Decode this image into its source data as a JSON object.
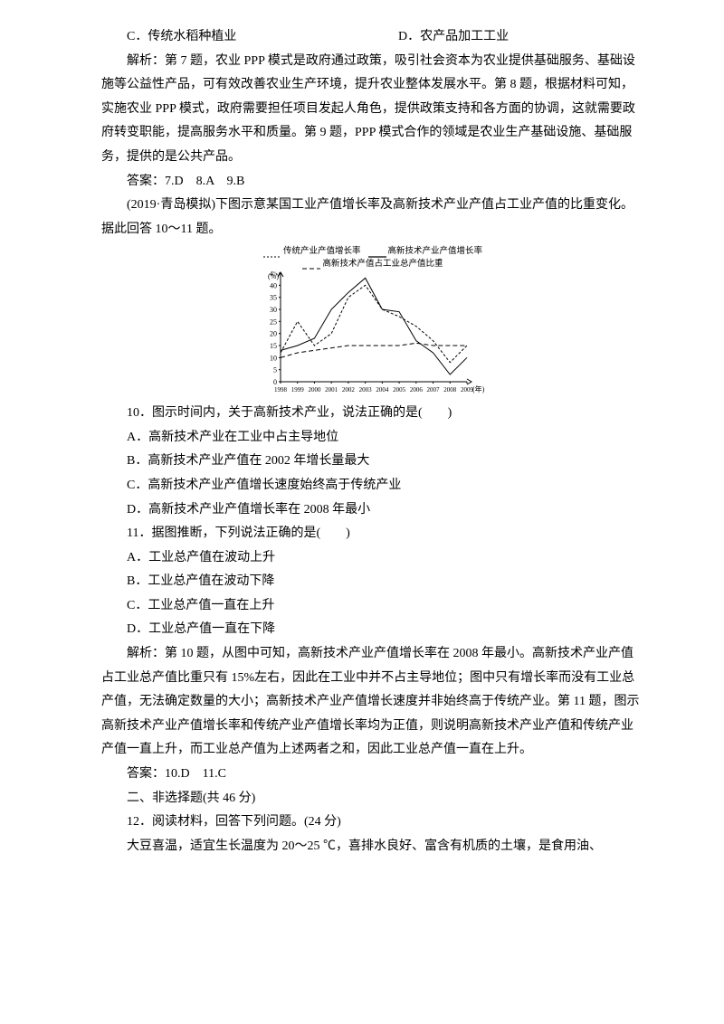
{
  "option_cd": {
    "c": "C．传统水稻种植业",
    "d": "D．农产品加工工业"
  },
  "analysis1": "解析：第 7 题，农业 PPP 模式是政府通过政策，吸引社会资本为农业提供基础服务、基础设施等公益性产品，可有效改善农业生产环境，提升农业整体发展水平。第 8 题，根据材料可知，实施农业 PPP 模式，政府需要担任项目发起人角色，提供政策支持和各方面的协调，这就需要政府转变职能，提高服务水平和质量。第 9 题，PPP 模式合作的领域是农业生产基础设施、基础服务，提供的是公共产品。",
  "ans1": "答案：7.D　8.A　9.B",
  "intro2": "(2019·青岛模拟)下图示意某国工业产值增长率及高新技术产业产值占工业产值的比重变化。据此回答 10～11 题。",
  "chart": {
    "legend": {
      "a_label": "传统产业产值增长率",
      "b_label": "高新技术产业产值增长率",
      "c_label": "高新技术产值占工业总产值比重"
    },
    "y_label": "(%)",
    "y_ticks": [
      "45",
      "40",
      "35",
      "30",
      "25",
      "20",
      "15",
      "10",
      "5",
      "0"
    ],
    "y_max": 45,
    "x_ticks": [
      "1998",
      "1999",
      "2000",
      "2001",
      "2002",
      "2003",
      "2004",
      "2005",
      "2006",
      "2007",
      "2008",
      "2009"
    ],
    "x_unit": "(年)",
    "series_traditional": [
      12,
      25,
      15,
      20,
      35,
      40,
      30,
      27,
      23,
      17,
      8,
      15
    ],
    "series_hightech": [
      13,
      15,
      18,
      30,
      37,
      43,
      30,
      29,
      17,
      12,
      3,
      10
    ],
    "series_ratio": [
      10,
      12,
      13,
      14,
      15,
      15,
      15,
      15,
      16,
      15,
      15,
      15
    ],
    "style_traditional": {
      "dash": "3 2",
      "width": 1,
      "color": "#000000"
    },
    "style_hightech": {
      "dash": "none",
      "width": 1,
      "color": "#000000"
    },
    "style_ratio": {
      "dash": "5 3",
      "width": 1,
      "color": "#000000"
    },
    "axis_color": "#000000",
    "bg": "#ffffff",
    "tick_fontsize": 8
  },
  "q10": {
    "stem": "10．图示时间内，关于高新技术产业，说法正确的是(　　)",
    "a": "A．高新技术产业在工业中占主导地位",
    "b": "B．高新技术产业产值在 2002 年增长量最大",
    "c": "C．高新技术产业产值增长速度始终高于传统产业",
    "d": "D．高新技术产业产值增长率在 2008 年最小"
  },
  "q11": {
    "stem": "11．据图推断，下列说法正确的是(　　)",
    "a": "A．工业总产值在波动上升",
    "b": "B．工业总产值在波动下降",
    "c": "C．工业总产值一直在上升",
    "d": "D．工业总产值一直在下降"
  },
  "analysis2": "解析：第 10 题，从图中可知，高新技术产业产值增长率在 2008 年最小。高新技术产业产值占工业总产值比重只有 15%左右，因此在工业中并不占主导地位；图中只有增长率而没有工业总产值，无法确定数量的大小；高新技术产业产值增长速度并非始终高于传统产业。第 11 题，图示高新技术产业产值增长率和传统产业产值增长率均为正值，则说明高新技术产业产值和传统产业产值一直上升，而工业总产值为上述两者之和，因此工业总产值一直在上升。",
  "ans2": "答案：10.D　11.C",
  "sec2_title": "二、非选择题(共 46 分)",
  "q12_stem": "12．阅读材料，回答下列问题。(24 分)",
  "q12_body": "大豆喜温，适宜生长温度为 20～25 ℃，喜排水良好、富含有机质的土壤，是食用油、"
}
